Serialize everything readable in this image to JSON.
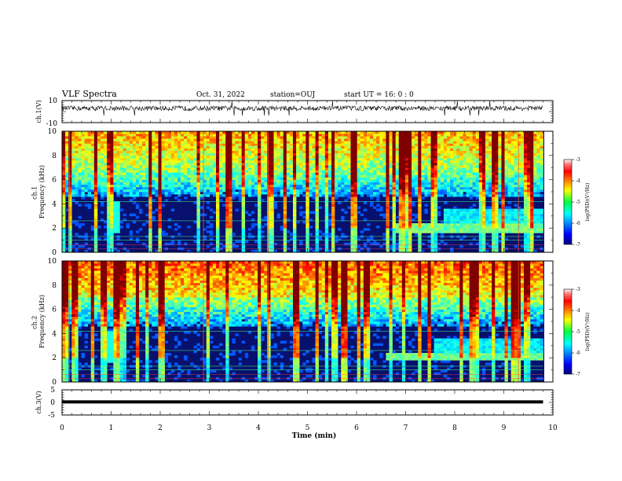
{
  "header": {
    "title": "VLF Spectra",
    "date": "Oct. 31, 2022",
    "station": "station=OUJ",
    "start": "start  UT =  16: 0  : 0"
  },
  "chart_data": [
    {
      "type": "line",
      "name": "ch1-voltage",
      "ylabel": "ch.1(V)",
      "ylim": [
        -10,
        10
      ],
      "yticks": [
        "10",
        "-10"
      ],
      "xlim": [
        0,
        10
      ],
      "data_extent_min": [
        0,
        9.8
      ],
      "level": 3.0,
      "amplitude": 2.2
    },
    {
      "type": "heatmap",
      "name": "ch1-spectrogram",
      "ylabel": "ch.1\nFrequency (kHz)",
      "ylim": [
        0,
        10
      ],
      "yticks": [
        "0",
        "2",
        "4",
        "6",
        "8",
        "10"
      ],
      "xlim": [
        0,
        10
      ],
      "data_extent_min": [
        0,
        9.8
      ],
      "hiss_band_khz": [
        1.6,
        2.4
      ],
      "hiss_start_min": 6.8,
      "colorbar": {
        "label": "log(PSD)(V²/Hz)",
        "range": [
          -7,
          -3
        ],
        "ticks": [
          "-3",
          "-4",
          "-5",
          "-6",
          "-7"
        ]
      }
    },
    {
      "type": "heatmap",
      "name": "ch2-spectrogram",
      "ylabel": "ch.2\nFrequency (kHz)",
      "ylim": [
        0,
        10
      ],
      "yticks": [
        "0",
        "2",
        "4",
        "6",
        "8",
        "10"
      ],
      "xlim": [
        0,
        10
      ],
      "data_extent_min": [
        0,
        9.8
      ],
      "hiss_band_khz": [
        1.8,
        2.4
      ],
      "hiss_start_min": 6.6,
      "colorbar": {
        "label": "log(PSD)(V²/Hz)",
        "range": [
          -7,
          -3
        ],
        "ticks": [
          "-3",
          "-4",
          "-5",
          "-6",
          "-7"
        ]
      }
    },
    {
      "type": "line",
      "name": "ch3-voltage",
      "ylabel": "ch.3(V)",
      "ylim": [
        -5,
        5
      ],
      "yticks": [
        "5",
        "0",
        "-5"
      ],
      "xlim": [
        0,
        10
      ],
      "data_extent_min": [
        0,
        9.8
      ],
      "level": 0.2,
      "xlabel": "Time  (min)",
      "xticks": [
        "0",
        "1",
        "2",
        "3",
        "4",
        "5",
        "6",
        "7",
        "8",
        "9",
        "10"
      ]
    }
  ]
}
